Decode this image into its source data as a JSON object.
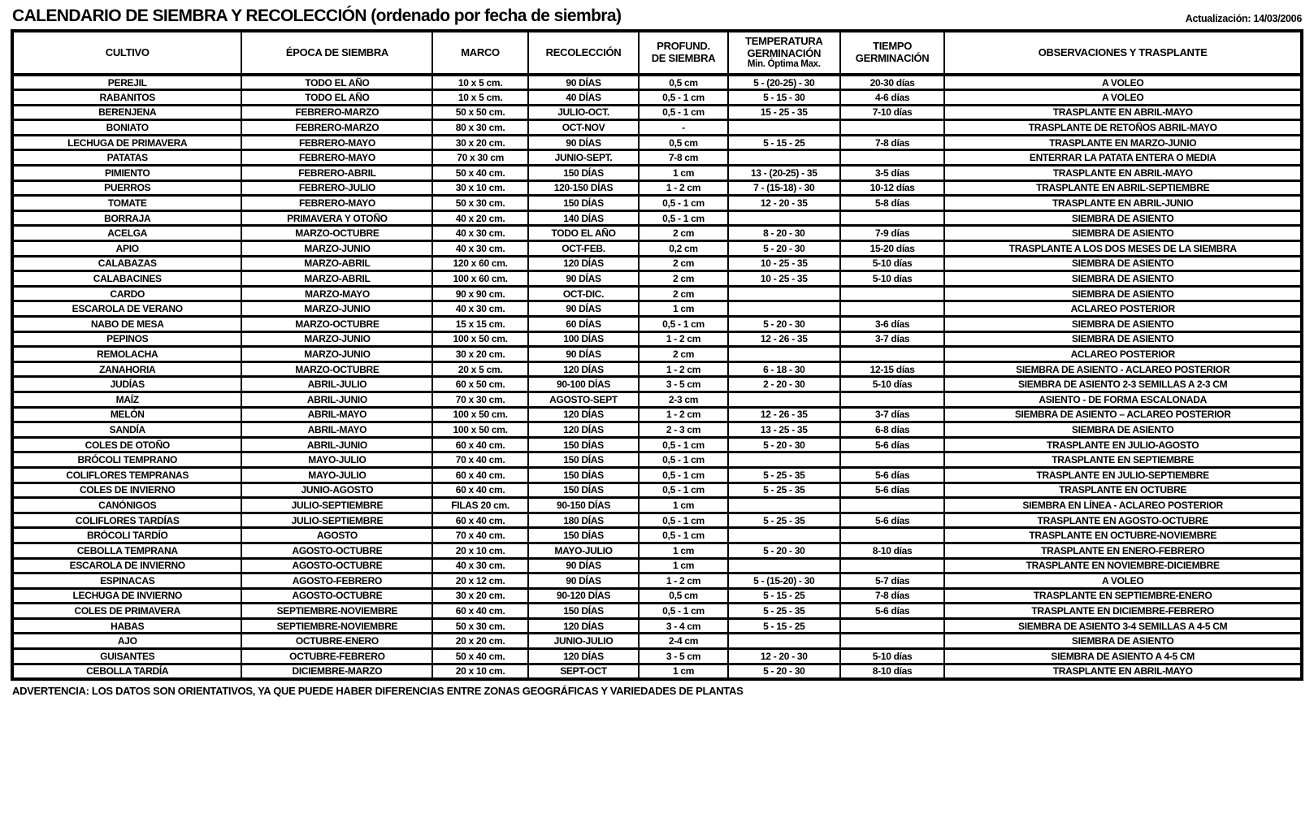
{
  "header": {
    "title": "CALENDARIO DE SIEMBRA Y RECOLECCIÓN (ordenado por fecha de siembra)",
    "updated": "Actualización: 14/03/2006"
  },
  "table": {
    "columns": [
      {
        "key": "cultivo",
        "label": "CULTIVO",
        "width": "17.8%"
      },
      {
        "key": "epoca",
        "label": "ÉPOCA DE SIEMBRA",
        "width": "14.8%"
      },
      {
        "key": "marco",
        "label": "MARCO",
        "width": "7.4%"
      },
      {
        "key": "recoleccion",
        "label": "RECOLECCIÓN",
        "width": "8.6%"
      },
      {
        "key": "profundidad",
        "label": "PROFUND.\nDE SIEMBRA",
        "width": "6.9%"
      },
      {
        "key": "temperatura",
        "label": "TEMPERATURA\nGERMINACIÓN",
        "sublabel": "Min. Óptima Max.",
        "width": "8.7%"
      },
      {
        "key": "tiempo",
        "label": "TIEMPO\nGERMINACIÓN",
        "width": "8.1%"
      },
      {
        "key": "observaciones",
        "label": "OBSERVACIONES  Y TRASPLANTE",
        "width": "27.7%"
      }
    ],
    "rows": [
      [
        "PEREJIL",
        "TODO EL AÑO",
        "10 x 5 cm.",
        "90 DÍAS",
        "0,5 cm",
        "5 - (20-25) - 30",
        "20-30 días",
        "A VOLEO"
      ],
      [
        "RABANITOS",
        "TODO EL AÑO",
        "10 x 5 cm.",
        "40 DÍAS",
        "0,5 - 1 cm",
        "5 - 15 - 30",
        "4-6 días",
        "A VOLEO"
      ],
      [
        "BERENJENA",
        "FEBRERO-MARZO",
        "50 x 50 cm.",
        "JULIO-OCT.",
        "0,5 - 1 cm",
        "15 - 25 - 35",
        "7-10 días",
        "TRASPLANTE EN ABRIL-MAYO"
      ],
      [
        "BONIATO",
        "FEBRERO-MARZO",
        "80 x 30 cm.",
        "OCT-NOV",
        "-",
        "",
        "",
        "TRASPLANTE DE RETOÑOS ABRIL-MAYO"
      ],
      [
        "LECHUGA DE PRIMAVERA",
        "FEBRERO-MAYO",
        "30 x 20 cm.",
        "90 DÍAS",
        "0,5 cm",
        "5 - 15 - 25",
        "7-8 días",
        "TRASPLANTE EN MARZO-JUNIO"
      ],
      [
        "PATATAS",
        "FEBRERO-MAYO",
        "70 x 30 cm",
        "JUNIO-SEPT.",
        "7-8 cm",
        "",
        "",
        "ENTERRAR LA PATATA ENTERA O MEDIA"
      ],
      [
        "PIMIENTO",
        "FEBRERO-ABRIL",
        "50 x 40 cm.",
        "150 DÍAS",
        "1 cm",
        "13 - (20-25) - 35",
        "3-5 días",
        "TRASPLANTE EN ABRIL-MAYO"
      ],
      [
        "PUERROS",
        "FEBRERO-JULIO",
        "30 x 10 cm.",
        "120-150 DÍAS",
        "1 - 2 cm",
        "7 - (15-18) - 30",
        "10-12 días",
        "TRASPLANTE EN ABRIL-SEPTIEMBRE"
      ],
      [
        "TOMATE",
        "FEBRERO-MAYO",
        "50 x 30 cm.",
        "150 DÍAS",
        "0,5 - 1 cm",
        "12 - 20 - 35",
        "5-8 días",
        "TRASPLANTE EN ABRIL-JUNIO"
      ],
      [
        "BORRAJA",
        "PRIMAVERA Y OTOÑO",
        "40 x 20 cm.",
        "140 DÍAS",
        "0,5 - 1 cm",
        "",
        "",
        "SIEMBRA DE ASIENTO"
      ],
      [
        "ACELGA",
        "MARZO-OCTUBRE",
        "40 x 30 cm.",
        "TODO EL AÑO",
        "2 cm",
        "8 - 20 - 30",
        "7-9 días",
        "SIEMBRA DE ASIENTO"
      ],
      [
        "APIO",
        "MARZO-JUNIO",
        "40 x 30 cm.",
        "OCT-FEB.",
        "0,2 cm",
        "5 - 20 - 30",
        "15-20 días",
        "TRASPLANTE A LOS DOS MESES DE LA SIEMBRA"
      ],
      [
        "CALABAZAS",
        "MARZO-ABRIL",
        "120 x 60 cm.",
        "120 DÍAS",
        "2 cm",
        "10 - 25 - 35",
        "5-10 días",
        "SIEMBRA DE ASIENTO"
      ],
      [
        "CALABACINES",
        "MARZO-ABRIL",
        "100 x 60 cm.",
        "90 DÍAS",
        "2 cm",
        "10 - 25 - 35",
        "5-10 días",
        "SIEMBRA DE ASIENTO"
      ],
      [
        "CARDO",
        "MARZO-MAYO",
        "90 x 90 cm.",
        "OCT-DIC.",
        "2 cm",
        "",
        "",
        "SIEMBRA DE ASIENTO"
      ],
      [
        "ESCAROLA DE VERANO",
        "MARZO-JUNIO",
        "40 x 30 cm.",
        "90 DÍAS",
        "1 cm",
        "",
        "",
        "ACLAREO POSTERIOR"
      ],
      [
        "NABO DE MESA",
        "MARZO-OCTUBRE",
        "15 x 15 cm.",
        "60 DÍAS",
        "0,5 - 1 cm",
        "5 - 20 - 30",
        "3-6 días",
        "SIEMBRA DE ASIENTO"
      ],
      [
        "PEPINOS",
        "MARZO-JUNIO",
        "100 x 50 cm.",
        "100 DÍAS",
        "1 - 2 cm",
        "12 - 26 - 35",
        "3-7 días",
        "SIEMBRA DE ASIENTO"
      ],
      [
        "REMOLACHA",
        "MARZO-JUNIO",
        "30 x 20 cm.",
        "90 DÍAS",
        "2 cm",
        "",
        "",
        "ACLAREO POSTERIOR"
      ],
      [
        "ZANAHORIA",
        "MARZO-OCTUBRE",
        "20 x 5 cm.",
        "120 DÍAS",
        "1 - 2 cm",
        "6 - 18 - 30",
        "12-15 días",
        "SIEMBRA DE ASIENTO - ACLAREO POSTERIOR"
      ],
      [
        "JUDÍAS",
        "ABRIL-JULIO",
        "60 x 50 cm.",
        "90-100 DÍAS",
        "3 - 5 cm",
        "2 - 20 - 30",
        "5-10 días",
        "SIEMBRA DE ASIENTO 2-3 SEMILLAS  A 2-3 CM"
      ],
      [
        "MAÍZ",
        "ABRIL-JUNIO",
        "70 x 30 cm.",
        "AGOSTO-SEPT",
        "2-3 cm",
        "",
        "",
        "ASIENTO - DE FORMA ESCALONADA"
      ],
      [
        "MELÓN",
        "ABRIL-MAYO",
        "100 x 50 cm.",
        "120 DÍAS",
        "1 - 2 cm",
        "12 - 26 - 35",
        "3-7 días",
        "SIEMBRA DE ASIENTO – ACLAREO POSTERIOR"
      ],
      [
        "SANDÍA",
        "ABRIL-MAYO",
        "100 x 50 cm.",
        "120 DÍAS",
        "2 - 3 cm",
        "13 - 25 - 35",
        "6-8 días",
        "SIEMBRA DE ASIENTO"
      ],
      [
        "COLES DE OTOÑO",
        "ABRIL-JUNIO",
        "60 x 40 cm.",
        "150 DÍAS",
        "0,5 - 1 cm",
        "5 - 20 - 30",
        "5-6 días",
        "TRASPLANTE EN JULIO-AGOSTO"
      ],
      [
        "BRÓCOLI TEMPRANO",
        "MAYO-JULIO",
        "70 x 40 cm.",
        "150 DÍAS",
        "0,5 - 1 cm",
        "",
        "",
        "TRASPLANTE EN SEPTIEMBRE"
      ],
      [
        "COLIFLORES TEMPRANAS",
        "MAYO-JULIO",
        "60 x 40 cm.",
        "150 DÍAS",
        "0,5 - 1 cm",
        "5 - 25 - 35",
        "5-6 días",
        "TRASPLANTE EN JULIO-SEPTIEMBRE"
      ],
      [
        "COLES DE INVIERNO",
        "JUNIO-AGOSTO",
        "60 x 40 cm.",
        "150 DÍAS",
        "0,5 - 1 cm",
        "5 - 25 - 35",
        "5-6 días",
        "TRASPLANTE EN OCTUBRE"
      ],
      [
        "CANÓNIGOS",
        "JULIO-SEPTIEMBRE",
        "FILAS 20 cm.",
        "90-150 DÍAS",
        "1 cm",
        "",
        "",
        "SIEMBRA EN LÍNEA - ACLAREO POSTERIOR"
      ],
      [
        "COLIFLORES TARDÍAS",
        "JULIO-SEPTIEMBRE",
        "60 x 40 cm.",
        "180 DÍAS",
        "0,5 - 1 cm",
        "5 - 25 - 35",
        "5-6 días",
        "TRASPLANTE EN AGOSTO-OCTUBRE"
      ],
      [
        "BRÓCOLI TARDÍO",
        "AGOSTO",
        "70 x 40 cm.",
        "150 DÍAS",
        "0,5 - 1 cm",
        "",
        "",
        "TRASPLANTE EN OCTUBRE-NOVIEMBRE"
      ],
      [
        "CEBOLLA TEMPRANA",
        "AGOSTO-OCTUBRE",
        "20 x 10 cm.",
        "MAYO-JULIO",
        "1 cm",
        "5 - 20 - 30",
        "8-10 días",
        "TRASPLANTE EN ENERO-FEBRERO"
      ],
      [
        "ESCAROLA DE INVIERNO",
        "AGOSTO-OCTUBRE",
        "40 x 30 cm.",
        "90 DÍAS",
        "1 cm",
        "",
        "",
        "TRASPLANTE EN NOVIEMBRE-DICIEMBRE"
      ],
      [
        "ESPINACAS",
        "AGOSTO-FEBRERO",
        "20 x 12 cm.",
        "90 DÍAS",
        "1 - 2 cm",
        "5 - (15-20) - 30",
        "5-7 días",
        "A VOLEO"
      ],
      [
        "LECHUGA DE INVIERNO",
        "AGOSTO-OCTUBRE",
        "30 x 20 cm.",
        "90-120 DÍAS",
        "0,5 cm",
        "5 - 15 - 25",
        "7-8 días",
        "TRASPLANTE EN SEPTIEMBRE-ENERO"
      ],
      [
        "COLES DE PRIMAVERA",
        "SEPTIEMBRE-NOVIEMBRE",
        "60 x 40 cm.",
        "150 DÍAS",
        "0,5 - 1 cm",
        "5 - 25 - 35",
        "5-6 días",
        "TRASPLANTE EN DICIEMBRE-FEBRERO"
      ],
      [
        "HABAS",
        "SEPTIEMBRE-NOVIEMBRE",
        "50 x 30 cm.",
        "120 DÍAS",
        "3 - 4 cm",
        "5 - 15 - 25",
        "",
        "SIEMBRA DE ASIENTO 3-4 SEMILLAS  A 4-5 CM"
      ],
      [
        "AJO",
        "OCTUBRE-ENERO",
        "20 x 20 cm.",
        "JUNIO-JULIO",
        "2-4 cm",
        "",
        "",
        "SIEMBRA DE ASIENTO"
      ],
      [
        "GUISANTES",
        "OCTUBRE-FEBRERO",
        "50 x 40 cm.",
        "120 DÍAS",
        "3 - 5 cm",
        "12 - 20 - 30",
        "5-10 días",
        "SIEMBRA DE ASIENTO  A 4-5 CM"
      ],
      [
        "CEBOLLA TARDÍA",
        "DICIEMBRE-MARZO",
        "20 x 10 cm.",
        "SEPT-OCT",
        "1 cm",
        "5 - 20 - 30",
        "8-10 días",
        "TRASPLANTE EN ABRIL-MAYO"
      ]
    ]
  },
  "footer": {
    "advertencia": "ADVERTENCIA: LOS DATOS SON ORIENTATIVOS, YA QUE PUEDE HABER DIFERENCIAS ENTRE ZONAS GEOGRÁFICAS Y VARIEDADES DE PLANTAS"
  },
  "colors": {
    "text": "#000000",
    "background": "#ffffff",
    "border": "#000000"
  }
}
